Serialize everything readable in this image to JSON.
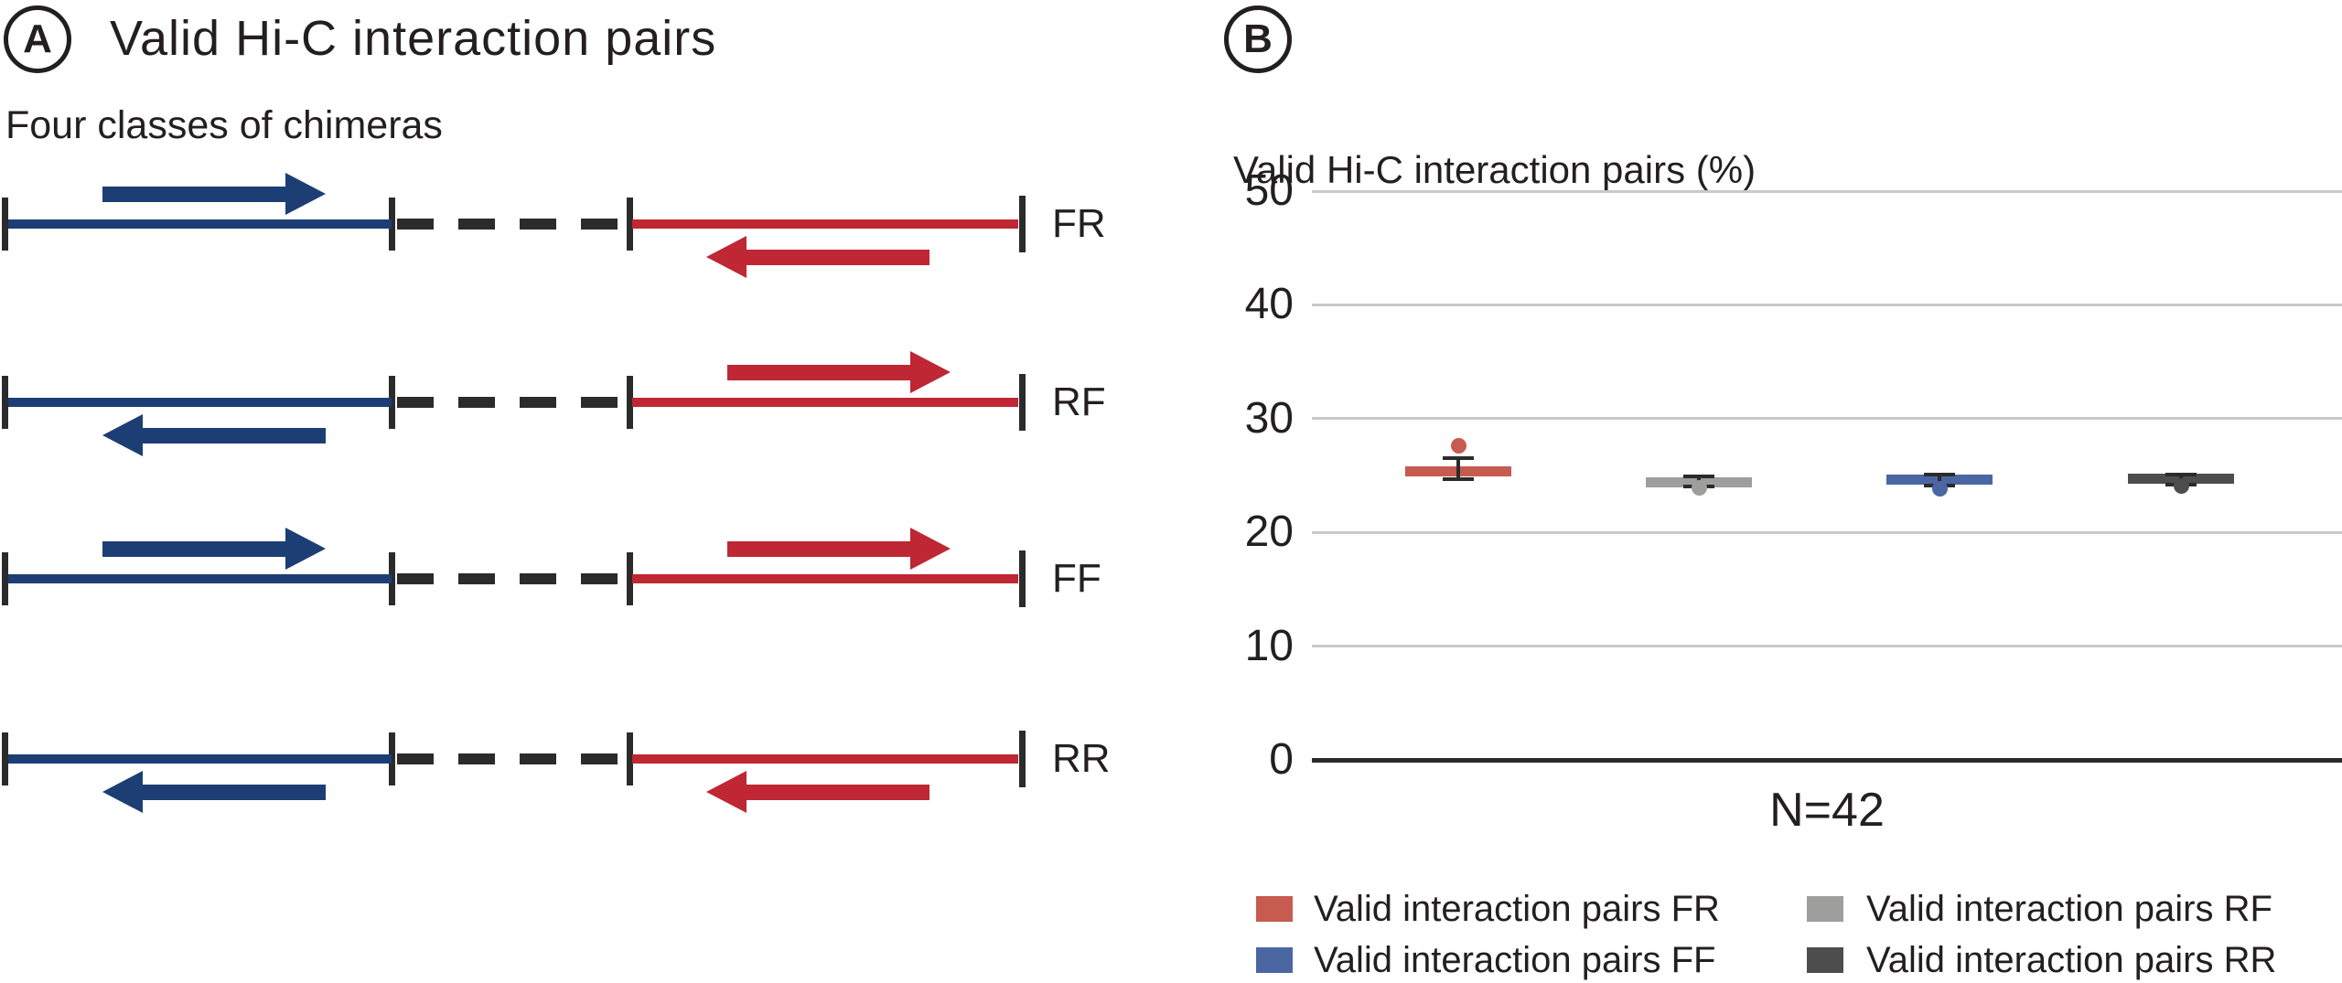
{
  "panel_a": {
    "label": "A",
    "title": "Valid Hi-C interaction pairs",
    "subtitle": "Four classes of chimeras",
    "colors": {
      "forward_segment_blue": "#1C3E74",
      "reverse_segment_red": "#BE2733",
      "marks_black": "#2B2B2B"
    },
    "rows": [
      {
        "label": "FR",
        "left_strand": "F",
        "right_strand": "R"
      },
      {
        "label": "RF",
        "left_strand": "R",
        "right_strand": "F"
      },
      {
        "label": "FF",
        "left_strand": "F",
        "right_strand": "F"
      },
      {
        "label": "RR",
        "left_strand": "R",
        "right_strand": "R"
      }
    ]
  },
  "panel_b": {
    "label": "B"
  },
  "chart_data": {
    "type": "scatter",
    "subtype": "mean-bar-with-error-and-outlier",
    "title": "Valid Hi-C interaction pairs (%)",
    "categories": [
      "FR",
      "RF",
      "FF",
      "RR"
    ],
    "series": [
      {
        "name": "Valid interaction pairs FR",
        "color": "#C75B50",
        "mean": 25.4,
        "err_low": 24.7,
        "err_high": 26.5,
        "outlier": 27.6
      },
      {
        "name": "Valid interaction pairs RF",
        "color": "#9E9E9C",
        "mean": 24.4,
        "err_low": 24.0,
        "err_high": 24.9,
        "outlier": 23.9
      },
      {
        "name": "Valid interaction pairs FF",
        "color": "#4A67A3",
        "mean": 24.6,
        "err_low": 24.1,
        "err_high": 25.1,
        "outlier": 23.8
      },
      {
        "name": "Valid interaction pairs RR",
        "color": "#4D4D4D",
        "mean": 24.7,
        "err_low": 24.2,
        "err_high": 25.1,
        "outlier": 24.1
      }
    ],
    "ylim": [
      0,
      50
    ],
    "yticks": [
      50,
      40,
      30,
      20,
      10,
      0
    ],
    "xlabel": "N=42",
    "grid": true,
    "gridline_color": "#C9C9C9",
    "zero_axis_color": "#2B2B2B",
    "legend_position": "bottom"
  }
}
